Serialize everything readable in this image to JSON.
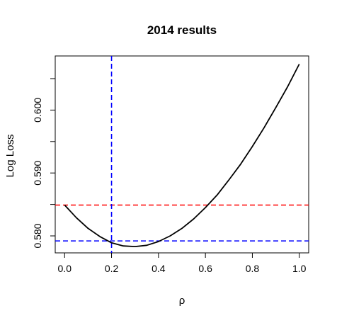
{
  "chart_data": {
    "type": "line",
    "title": "2014 results",
    "xlabel": "ρ",
    "ylabel": "Log Loss",
    "xlim": [
      -0.04,
      1.04
    ],
    "ylim": [
      0.5773,
      0.6086
    ],
    "xticks": [
      "0.0",
      "0.2",
      "0.4",
      "0.6",
      "0.8",
      "1.0"
    ],
    "xtick_values": [
      0.0,
      0.2,
      0.4,
      0.6,
      0.8,
      1.0
    ],
    "yticks": [
      "0.580",
      "0.590",
      "0.600"
    ],
    "ytick_values": [
      0.58,
      0.59,
      0.6
    ],
    "grid": false,
    "series": [
      {
        "color": "#000000",
        "style": "solid",
        "x": [
          0.0,
          0.05,
          0.1,
          0.15,
          0.2,
          0.25,
          0.3,
          0.35,
          0.4,
          0.45,
          0.5,
          0.55,
          0.6,
          0.65,
          0.7,
          0.75,
          0.8,
          0.85,
          0.9,
          0.95,
          1.0
        ],
        "y": [
          0.5849,
          0.5829,
          0.5812,
          0.5799,
          0.5789,
          0.5784,
          0.5783,
          0.5785,
          0.5791,
          0.58,
          0.5812,
          0.5827,
          0.5845,
          0.5865,
          0.5889,
          0.5914,
          0.5942,
          0.5972,
          0.6004,
          0.6037,
          0.6073
        ]
      }
    ],
    "reference_lines": [
      {
        "orientation": "horizontal",
        "value": 0.5849,
        "color": "#ff0000",
        "style": "dashed"
      },
      {
        "orientation": "horizontal",
        "value": 0.5792,
        "color": "#0000ff",
        "style": "dashed"
      },
      {
        "orientation": "vertical",
        "value": 0.2,
        "color": "#0000ff",
        "style": "dashed"
      }
    ]
  }
}
